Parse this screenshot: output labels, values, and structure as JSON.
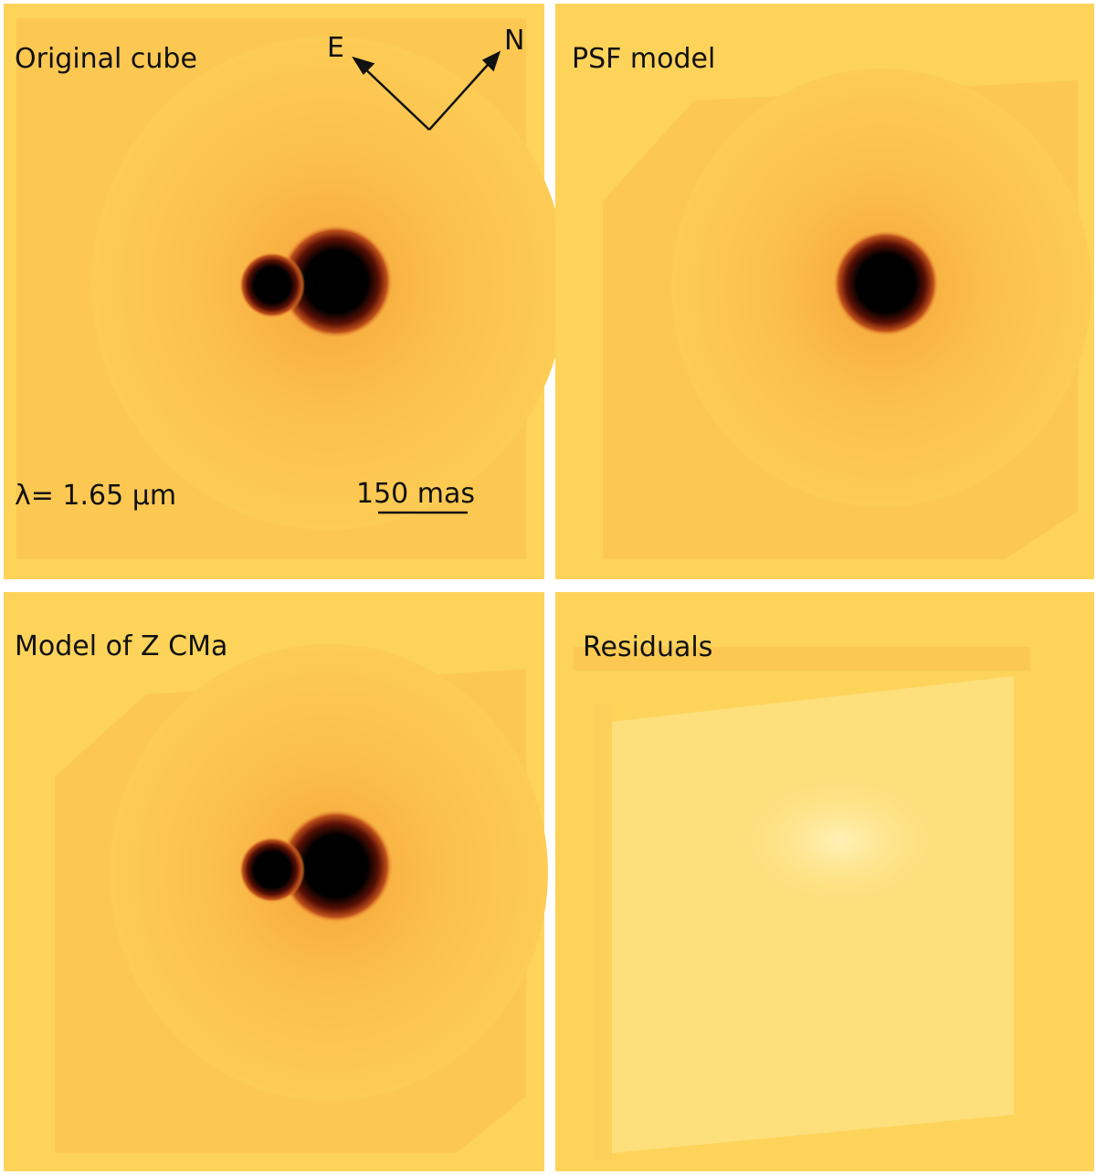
{
  "panels": [
    {
      "title": "Original cube"
    },
    {
      "title": "PSF model"
    },
    {
      "title": "Model of Z CMa"
    },
    {
      "title": "Residuals"
    }
  ],
  "compass": {
    "east": "E",
    "north": "N"
  },
  "wavelength": "λ= 1.65 μm",
  "scale_bar": "150 mas"
}
